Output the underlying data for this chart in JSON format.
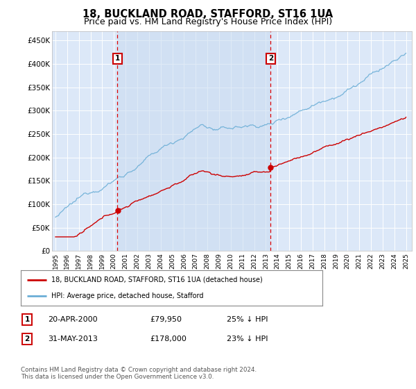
{
  "title": "18, BUCKLAND ROAD, STAFFORD, ST16 1UA",
  "subtitle": "Price paid vs. HM Land Registry's House Price Index (HPI)",
  "title_fontsize": 10.5,
  "subtitle_fontsize": 9,
  "background_color": "#ffffff",
  "plot_bg_color": "#dce8f8",
  "grid_color": "#ffffff",
  "yticks": [
    0,
    50000,
    100000,
    150000,
    200000,
    250000,
    300000,
    350000,
    400000,
    450000
  ],
  "ytick_labels": [
    "£0",
    "£50K",
    "£100K",
    "£150K",
    "£200K",
    "£250K",
    "£300K",
    "£350K",
    "£400K",
    "£450K"
  ],
  "xlim_start": 1994.7,
  "xlim_end": 2025.5,
  "ylim_min": 0,
  "ylim_max": 470000,
  "hpi_color": "#6baed6",
  "price_color": "#cc0000",
  "shade_color": "#dce8f8",
  "vline_color": "#dd0000",
  "sale1_x": 2000.3,
  "sale1_y": 79950,
  "sale1_label": "1",
  "sale1_date": "20-APR-2000",
  "sale1_price": "£79,950",
  "sale1_pct": "25% ↓ HPI",
  "sale2_x": 2013.41,
  "sale2_y": 178000,
  "sale2_label": "2",
  "sale2_date": "31-MAY-2013",
  "sale2_price": "£178,000",
  "sale2_pct": "23% ↓ HPI",
  "legend_line1": "18, BUCKLAND ROAD, STAFFORD, ST16 1UA (detached house)",
  "legend_line2": "HPI: Average price, detached house, Stafford",
  "footer": "Contains HM Land Registry data © Crown copyright and database right 2024.\nThis data is licensed under the Open Government Licence v3.0."
}
